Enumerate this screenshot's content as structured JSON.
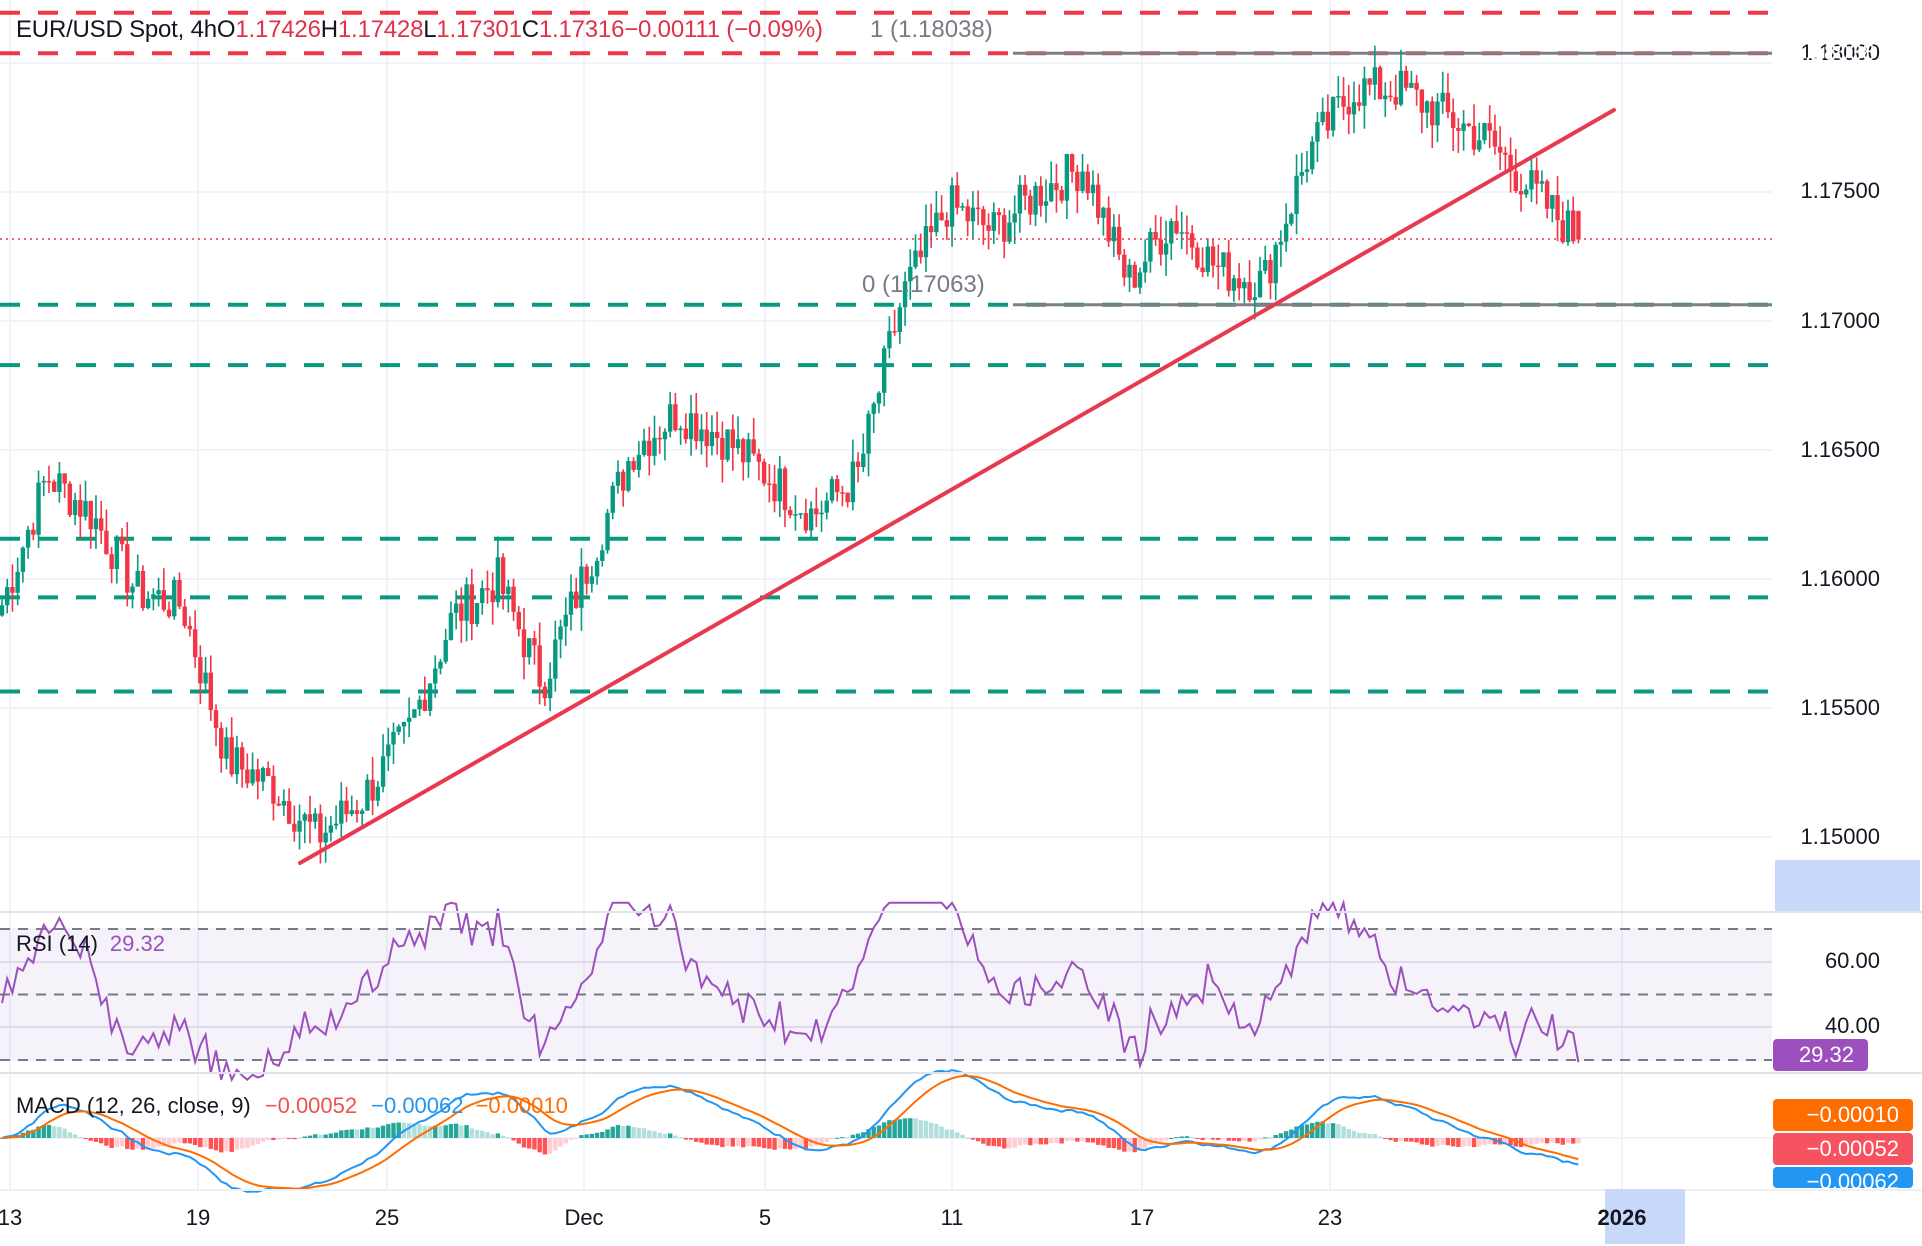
{
  "header": {
    "symbol": "EUR/USD Spot, 4h",
    "open_key": "O",
    "open": "1.17426",
    "high_key": "H",
    "high": "1.17428",
    "low_key": "L",
    "low": "1.17301",
    "close_key": "C",
    "close": "1.17316",
    "change": "−0.00111 (−0.09%)"
  },
  "fib_labels": {
    "top": "1 (1.18038)",
    "bottom": "0 (1.17063)"
  },
  "price_axis": {
    "ticks": [
      "1.18000",
      "1.17500",
      "1.17000",
      "1.16500",
      "1.16000",
      "1.15500",
      "1.15000"
    ]
  },
  "price_tags": [
    {
      "label": "1.18195",
      "color": "#f23645"
    },
    {
      "label": "1.18038",
      "color": "#f23645"
    },
    {
      "label": "1.17316",
      "color": "#f23645"
    },
    {
      "label": "1.17063",
      "color": "#089981"
    },
    {
      "label": "1.16829",
      "color": "#089981"
    },
    {
      "label": "1.16156",
      "color": "#089981"
    },
    {
      "label": "1.15929",
      "color": "#089981"
    },
    {
      "label": "1.15564",
      "color": "#089981"
    }
  ],
  "rsi": {
    "title": "RSI (14)",
    "value": "29.32",
    "ticks": [
      "60.00",
      "40.00"
    ],
    "tag": "29.32",
    "color": "#9c50bd"
  },
  "macd": {
    "title": "MACD (12, 26, close, 9)",
    "hist_value": "−0.00052",
    "macd_value": "−0.00062",
    "signal_value": "−0.00010",
    "tags": [
      "−0.00010",
      "−0.00052",
      "−0.00062"
    ]
  },
  "time_axis": {
    "labels": [
      "13",
      "19",
      "25",
      "Dec",
      "5",
      "11",
      "17",
      "23",
      "2026"
    ]
  },
  "colors": {
    "up": "#089981",
    "down": "#f23645",
    "trendline": "#e8394f",
    "fib": "#7e7e85",
    "rsi": "#9c50bd",
    "macd": "#2196f3",
    "signal": "#ff6d00"
  },
  "chart_data": {
    "type": "candlestick",
    "title": "EUR/USD Spot, 4h",
    "ohlc_last": {
      "open": 1.17426,
      "high": 1.17428,
      "low": 1.17301,
      "close": 1.17316,
      "change": -0.00111,
      "change_pct": -0.09
    },
    "x_ticks": [
      "13",
      "19",
      "25",
      "Dec",
      "5",
      "11",
      "17",
      "23",
      "2026"
    ],
    "y_ticks": [
      1.15,
      1.155,
      1.16,
      1.165,
      1.17,
      1.175,
      1.18
    ],
    "ylim": [
      1.1465,
      1.1825
    ],
    "close_path": [
      {
        "date": "Nov 13",
        "price": 1.159
      },
      {
        "date": "Nov 14",
        "price": 1.164
      },
      {
        "date": "Nov 15",
        "price": 1.1625
      },
      {
        "date": "Nov 17",
        "price": 1.1595
      },
      {
        "date": "Nov 19",
        "price": 1.159
      },
      {
        "date": "Nov 20",
        "price": 1.153
      },
      {
        "date": "Nov 21",
        "price": 1.152
      },
      {
        "date": "Nov 22",
        "price": 1.15
      },
      {
        "date": "Nov 23",
        "price": 1.1515
      },
      {
        "date": "Nov 25",
        "price": 1.154
      },
      {
        "date": "Nov 26",
        "price": 1.1585
      },
      {
        "date": "Nov 28",
        "price": 1.16
      },
      {
        "date": "Nov 29",
        "price": 1.156
      },
      {
        "date": "Dec 1",
        "price": 1.1605
      },
      {
        "date": "Dec 3",
        "price": 1.165
      },
      {
        "date": "Dec 4",
        "price": 1.1665
      },
      {
        "date": "Dec 5",
        "price": 1.1655
      },
      {
        "date": "Dec 6",
        "price": 1.164
      },
      {
        "date": "Dec 8",
        "price": 1.1625
      },
      {
        "date": "Dec 10",
        "price": 1.164
      },
      {
        "date": "Dec 11",
        "price": 1.171
      },
      {
        "date": "Dec 12",
        "price": 1.1745
      },
      {
        "date": "Dec 13",
        "price": 1.1735
      },
      {
        "date": "Dec 15",
        "price": 1.175
      },
      {
        "date": "Dec 16",
        "price": 1.176
      },
      {
        "date": "Dec 17",
        "price": 1.1715
      },
      {
        "date": "Dec 18",
        "price": 1.174
      },
      {
        "date": "Dec 19",
        "price": 1.172
      },
      {
        "date": "Dec 20",
        "price": 1.1715
      },
      {
        "date": "Dec 22",
        "price": 1.1765
      },
      {
        "date": "Dec 23",
        "price": 1.179
      },
      {
        "date": "Dec 24",
        "price": 1.179
      },
      {
        "date": "Dec 26",
        "price": 1.178
      },
      {
        "date": "Dec 28",
        "price": 1.177
      },
      {
        "date": "Dec 29",
        "price": 1.175
      },
      {
        "date": "Dec 30",
        "price": 1.17316
      }
    ],
    "horizontal_levels": [
      {
        "price": 1.18195,
        "style": "dashed",
        "color": "red"
      },
      {
        "price": 1.18038,
        "style": "dashed",
        "color": "red",
        "label": "Fib 1"
      },
      {
        "price": 1.17063,
        "style": "dashed",
        "color": "green",
        "label": "Fib 0"
      },
      {
        "price": 1.16829,
        "style": "dashed",
        "color": "green"
      },
      {
        "price": 1.16156,
        "style": "dashed",
        "color": "green"
      },
      {
        "price": 1.15929,
        "style": "dashed",
        "color": "green"
      },
      {
        "price": 1.15564,
        "style": "dashed",
        "color": "green"
      }
    ],
    "trendline": {
      "from": {
        "date": "Nov 22",
        "price": 1.1487
      },
      "to": {
        "date": "Dec 31",
        "price": 1.1779
      },
      "color": "red"
    },
    "indicators": {
      "rsi": {
        "period": 14,
        "value": 29.32,
        "levels": [
          70,
          50,
          30
        ],
        "ticks": [
          60,
          40
        ]
      },
      "macd": {
        "fast": 12,
        "slow": 26,
        "source": "close",
        "signal": 9,
        "histogram": -0.00052,
        "macd": -0.00062,
        "signal_value": -0.0001
      }
    }
  }
}
